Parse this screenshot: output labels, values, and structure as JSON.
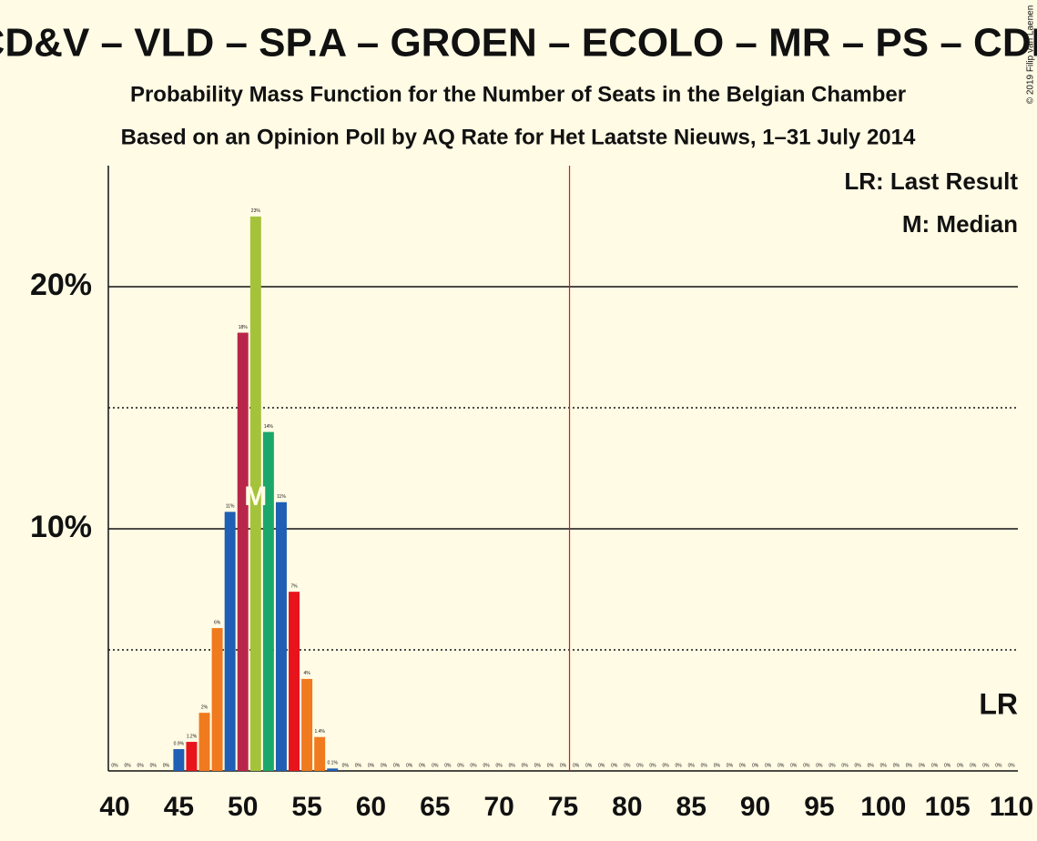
{
  "chart_data": {
    "type": "bar",
    "title": "CD&V – VLD – SP.A – GROEN – ECOLO – MR – PS – CDH",
    "subtitle": "Probability Mass Function for the Number of Seats in the Belgian Chamber",
    "subtitle2": "Based on an Opinion Poll by AQ Rate for Het Laatste Nieuws, 1–31 July 2014",
    "legend": [
      "LR: Last Result",
      "M: Median"
    ],
    "copyright": "© 2019 Filip van Laenen",
    "median": {
      "x": 51,
      "label": "M"
    },
    "last_result": {
      "label": "LR"
    },
    "majority_line": {
      "x": 76,
      "color": "#e0141e"
    },
    "x": [
      40,
      41,
      42,
      43,
      44,
      45,
      46,
      47,
      48,
      49,
      50,
      51,
      52,
      53,
      54,
      55,
      56,
      57,
      58,
      59,
      60,
      61,
      62,
      63,
      64,
      65,
      66,
      67,
      68,
      69,
      70,
      71,
      72,
      73,
      74,
      75,
      76,
      77,
      78,
      79,
      80,
      81,
      82,
      83,
      84,
      85,
      86,
      87,
      88,
      89,
      90,
      91,
      92,
      93,
      94,
      95,
      96,
      97,
      98,
      99,
      100,
      101,
      102,
      103,
      104,
      105,
      106,
      107,
      108,
      109,
      110
    ],
    "values": [
      0,
      0,
      0,
      0,
      0,
      0.9,
      1.2,
      2.4,
      5.9,
      10.7,
      18.1,
      22.9,
      14.0,
      11.1,
      7.4,
      3.8,
      1.4,
      0.1,
      0,
      0,
      0,
      0,
      0,
      0,
      0,
      0,
      0,
      0,
      0,
      0,
      0,
      0,
      0,
      0,
      0,
      0,
      0,
      0,
      0,
      0,
      0,
      0,
      0,
      0,
      0,
      0,
      0,
      0,
      0,
      0,
      0,
      0,
      0,
      0,
      0,
      0,
      0,
      0,
      0,
      0,
      0,
      0,
      0,
      0,
      0,
      0,
      0,
      0,
      0,
      0,
      0
    ],
    "value_labels": [
      "0%",
      "0%",
      "0%",
      "0%",
      "0%",
      "0.9%",
      "1.2%",
      "2%",
      "6%",
      "11%",
      "18%",
      "23%",
      "14%",
      "11%",
      "7%",
      "4%",
      "1.4%",
      "0.1%",
      "0%",
      "0%",
      "0%",
      "0%",
      "0%",
      "0%",
      "0%",
      "0%",
      "0%",
      "0%",
      "0%",
      "0%",
      "0%",
      "0%",
      "0%",
      "0%",
      "0%",
      "0%",
      "0%",
      "0%",
      "0%",
      "0%",
      "0%",
      "0%",
      "0%",
      "0%",
      "0%",
      "0%",
      "0%",
      "0%",
      "0%",
      "0%",
      "0%",
      "0%",
      "0%",
      "0%",
      "0%",
      "0%",
      "0%",
      "0%",
      "0%",
      "0%",
      "0%",
      "0%",
      "0%",
      "0%",
      "0%",
      "0%",
      "0%",
      "0%",
      "0%",
      "0%",
      "0%"
    ],
    "colors": [
      "#1f5fb4",
      "#1f5fb4",
      "#1f5fb4",
      "#1f5fb4",
      "#1f5fb4",
      "#1f5fb4",
      "#e8141c",
      "#f07a1e",
      "#f07a1e",
      "#1f5fb4",
      "#b8274a",
      "#a5c33a",
      "#1aa86a",
      "#1f5fb4",
      "#e8141c",
      "#f07a1e",
      "#f07a1e",
      "#1f5fb4",
      "#1f5fb4",
      "#1f5fb4",
      "#1f5fb4",
      "#1f5fb4",
      "#1f5fb4",
      "#1f5fb4",
      "#1f5fb4",
      "#1f5fb4",
      "#1f5fb4",
      "#1f5fb4",
      "#1f5fb4",
      "#1f5fb4",
      "#1f5fb4",
      "#1f5fb4",
      "#1f5fb4",
      "#1f5fb4",
      "#1f5fb4",
      "#1f5fb4",
      "#1f5fb4",
      "#1f5fb4",
      "#1f5fb4",
      "#1f5fb4",
      "#1f5fb4",
      "#1f5fb4",
      "#1f5fb4",
      "#1f5fb4",
      "#1f5fb4",
      "#1f5fb4",
      "#1f5fb4",
      "#1f5fb4",
      "#1f5fb4",
      "#1f5fb4",
      "#1f5fb4",
      "#1f5fb4",
      "#1f5fb4",
      "#1f5fb4",
      "#1f5fb4",
      "#1f5fb4",
      "#1f5fb4",
      "#1f5fb4",
      "#1f5fb4",
      "#1f5fb4",
      "#1f5fb4",
      "#1f5fb4",
      "#1f5fb4",
      "#1f5fb4",
      "#1f5fb4",
      "#1f5fb4",
      "#1f5fb4",
      "#1f5fb4",
      "#1f5fb4",
      "#1f5fb4",
      "#1f5fb4"
    ],
    "xlim": [
      39.5,
      110.5
    ],
    "xticks": [
      40,
      45,
      50,
      55,
      60,
      65,
      70,
      75,
      80,
      85,
      90,
      95,
      100,
      105,
      110
    ],
    "ylim": [
      0,
      25
    ],
    "yticks": [
      {
        "value": 10,
        "label": "10%"
      },
      {
        "value": 20,
        "label": "20%"
      }
    ],
    "yticks_minor": [
      5,
      15
    ],
    "grid": true
  }
}
